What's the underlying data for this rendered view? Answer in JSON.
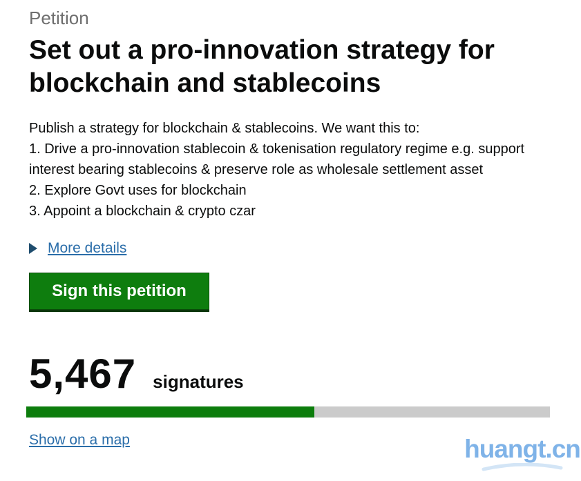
{
  "page": {
    "eyebrow": "Petition",
    "title": "Set out a pro-innovation strategy for blockchain and stablecoins"
  },
  "description": {
    "lines": [
      "Publish a strategy for blockchain & stablecoins. We want this to:",
      "1. Drive a pro-innovation stablecoin & tokenisation regulatory regime e.g. support interest bearing stablecoins & preserve role as wholesale settlement asset",
      "2. Explore Govt uses for blockchain",
      "3. Appoint a blockchain & crypto czar"
    ]
  },
  "details_section": {
    "more_details_label": "More details",
    "marker_icon": "right-triangle-icon"
  },
  "actions": {
    "sign_button_label": "Sign this petition"
  },
  "signatures": {
    "count": "5,467",
    "label": "signatures",
    "progress_percent": 55
  },
  "map": {
    "link_label": "Show on a map"
  },
  "watermark": {
    "text": "huangt.cn"
  },
  "colors": {
    "link_blue": "#2a6da9",
    "disclosure_triangle": "#1f4d6e",
    "button_green": "#0e7d0e",
    "progress_green": "#0c7d0c",
    "progress_track_gray": "#cbcbcb",
    "eyebrow_gray": "#6e6e6e",
    "watermark_blue": "#7fb3e8"
  }
}
